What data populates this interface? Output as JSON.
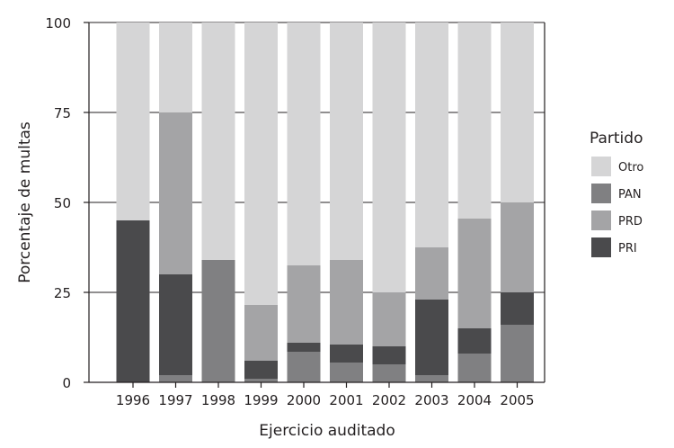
{
  "chart_data": {
    "type": "bar",
    "stacked": true,
    "xlabel": "Ejercicio auditado",
    "ylabel": "Porcentaje de multas",
    "ylim": [
      0,
      100
    ],
    "yticks": [
      0,
      25,
      50,
      75,
      100
    ],
    "grid": "horizontal",
    "legend_position": "right",
    "categories": [
      "1996",
      "1997",
      "1998",
      "1999",
      "2000",
      "2001",
      "2002",
      "2003",
      "2004",
      "2005"
    ],
    "series": [
      {
        "name": "PAN",
        "color": "#808082",
        "values": [
          0,
          2,
          34,
          1,
          8.5,
          5.5,
          5,
          2,
          8,
          16
        ]
      },
      {
        "name": "PRI",
        "color": "#4a4a4c",
        "values": [
          45,
          28,
          0,
          5,
          2.5,
          5,
          5,
          21,
          7,
          9
        ]
      },
      {
        "name": "PRD",
        "color": "#a4a4a6",
        "values": [
          0,
          45,
          0,
          15.5,
          21.5,
          23.5,
          15,
          14.5,
          30.5,
          25
        ]
      },
      {
        "name": "Otro",
        "color": "#d5d5d6",
        "values": [
          55,
          25,
          66,
          78.5,
          67.5,
          66,
          75,
          62.5,
          54.5,
          50
        ]
      }
    ],
    "legend": {
      "title": "Partido",
      "order": [
        "Otro",
        "PAN",
        "PRD",
        "PRI"
      ]
    }
  }
}
